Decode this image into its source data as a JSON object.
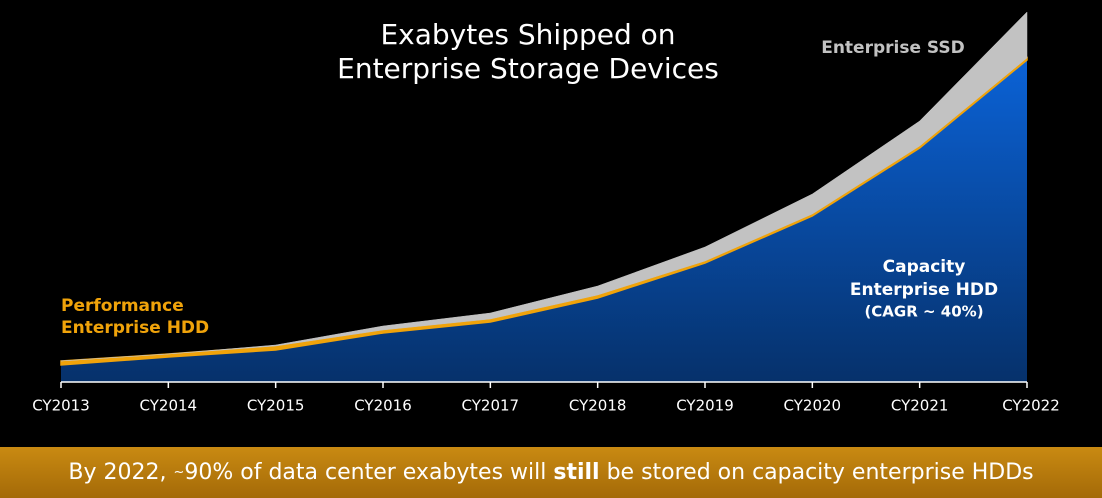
{
  "chart_data": {
    "type": "stacked-area",
    "title_lines": [
      "Exabytes Shipped on",
      "Enterprise Storage Devices"
    ],
    "categories": [
      "CY2013",
      "CY2014",
      "CY2015",
      "CY2016",
      "CY2017",
      "CY2018",
      "CY2019",
      "CY2020",
      "CY2021",
      "CY2022"
    ],
    "series": [
      {
        "name_lines": [
          "Capacity",
          "Enterprise HDD"
        ],
        "note": "(CAGR ~ 40%)",
        "color": "#0b62d6",
        "values": [
          17,
          25,
          32,
          49,
          60,
          84,
          119,
          166,
          234,
          322
        ]
      },
      {
        "name_lines": [
          "Performance",
          "Enterprise HDD"
        ],
        "color": "#f0a30a",
        "values": [
          4,
          3,
          4,
          3,
          3,
          3,
          2,
          2,
          2,
          2
        ]
      },
      {
        "name_lines": [
          "Enterprise SSD"
        ],
        "color": "#c2c2c2",
        "values": [
          0,
          0,
          1,
          4,
          6,
          9,
          14,
          20,
          25,
          46
        ]
      }
    ],
    "ylim": [
      0,
      370
    ]
  },
  "footer": {
    "before": "By 2022, ",
    "tilde": "~",
    "middle": "90% of data center exabytes will ",
    "emphasis": "still",
    "after": " be stored on capacity enterprise HDDs"
  }
}
